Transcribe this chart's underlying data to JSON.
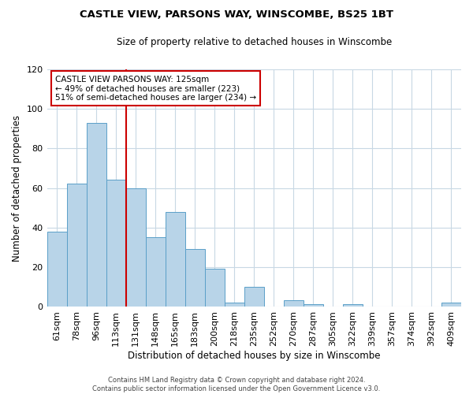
{
  "title": "CASTLE VIEW, PARSONS WAY, WINSCOMBE, BS25 1BT",
  "subtitle": "Size of property relative to detached houses in Winscombe",
  "xlabel": "Distribution of detached houses by size in Winscombe",
  "ylabel": "Number of detached properties",
  "bar_labels": [
    "61sqm",
    "78sqm",
    "96sqm",
    "113sqm",
    "131sqm",
    "148sqm",
    "165sqm",
    "183sqm",
    "200sqm",
    "218sqm",
    "235sqm",
    "252sqm",
    "270sqm",
    "287sqm",
    "305sqm",
    "322sqm",
    "339sqm",
    "357sqm",
    "374sqm",
    "392sqm",
    "409sqm"
  ],
  "bar_values": [
    38,
    62,
    93,
    64,
    60,
    35,
    48,
    29,
    19,
    2,
    10,
    0,
    3,
    1,
    0,
    1,
    0,
    0,
    0,
    0,
    2
  ],
  "bar_color": "#b8d4e8",
  "bar_edge_color": "#5a9fc8",
  "vline_x_index": 4,
  "vline_color": "#cc0000",
  "ylim": [
    0,
    120
  ],
  "yticks": [
    0,
    20,
    40,
    60,
    80,
    100,
    120
  ],
  "annotation_title": "CASTLE VIEW PARSONS WAY: 125sqm",
  "annotation_line1": "← 49% of detached houses are smaller (223)",
  "annotation_line2": "51% of semi-detached houses are larger (234) →",
  "annotation_box_color": "#ffffff",
  "annotation_box_edge_color": "#cc0000",
  "footer_line1": "Contains HM Land Registry data © Crown copyright and database right 2024.",
  "footer_line2": "Contains public sector information licensed under the Open Government Licence v3.0.",
  "background_color": "#ffffff",
  "grid_color": "#c8d8e4"
}
